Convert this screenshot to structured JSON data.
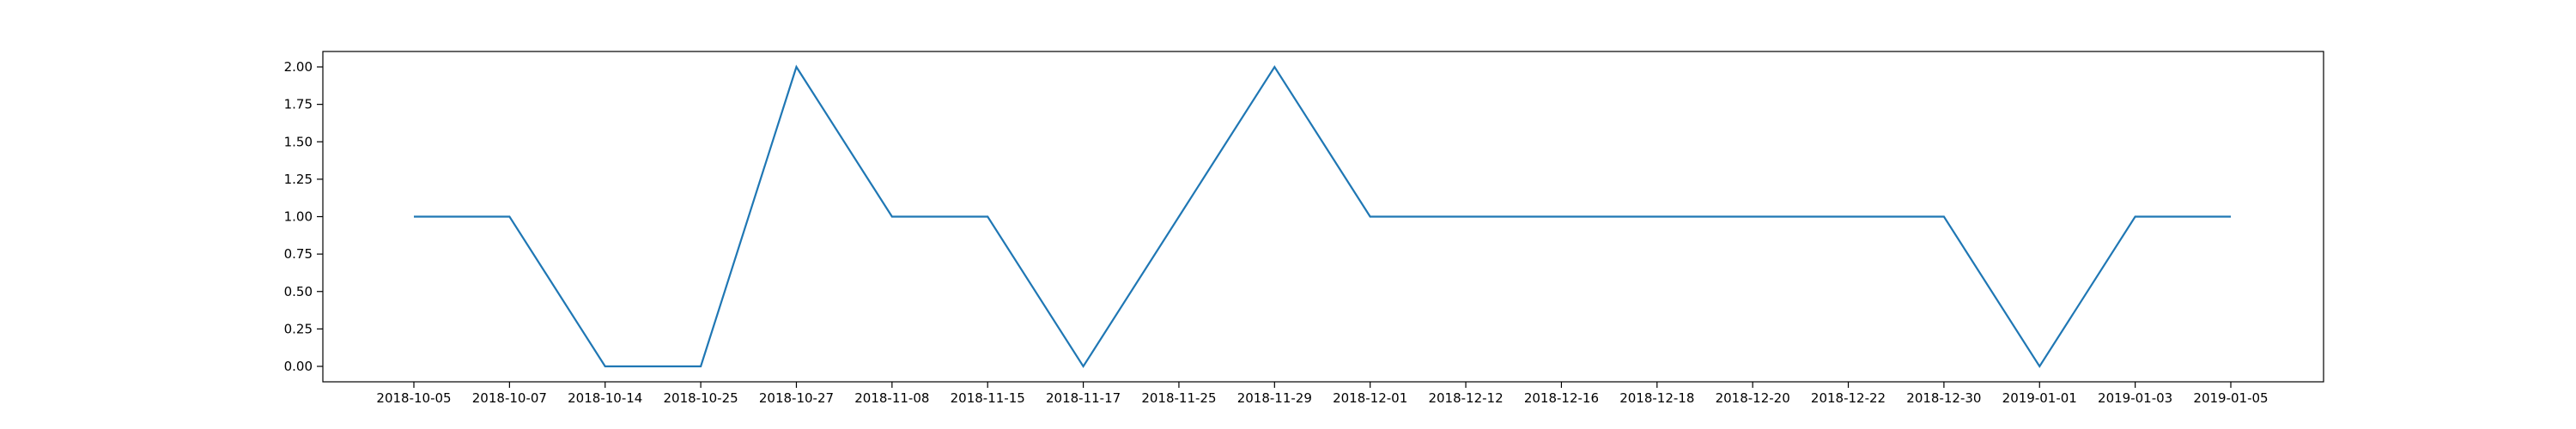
{
  "chart_data": {
    "type": "line",
    "title": "",
    "xlabel": "",
    "ylabel": "",
    "categories": [
      "2018-10-05",
      "2018-10-07",
      "2018-10-14",
      "2018-10-25",
      "2018-10-27",
      "2018-11-08",
      "2018-11-15",
      "2018-11-17",
      "2018-11-25",
      "2018-11-29",
      "2018-12-01",
      "2018-12-12",
      "2018-12-16",
      "2018-12-18",
      "2018-12-20",
      "2018-12-22",
      "2018-12-30",
      "2019-01-01",
      "2019-01-03",
      "2019-01-05"
    ],
    "series": [
      {
        "values": [
          1,
          1,
          0,
          0,
          2,
          1,
          1,
          0,
          1,
          2,
          1,
          1,
          1,
          1,
          1,
          1,
          1,
          0,
          1,
          1
        ],
        "color": "#1f77b4"
      }
    ],
    "ylim": [
      0,
      2
    ],
    "yticks": [
      "0.00",
      "0.25",
      "0.50",
      "0.75",
      "1.00",
      "1.25",
      "1.50",
      "1.75",
      "2.00"
    ],
    "grid": false,
    "legend": "none"
  }
}
